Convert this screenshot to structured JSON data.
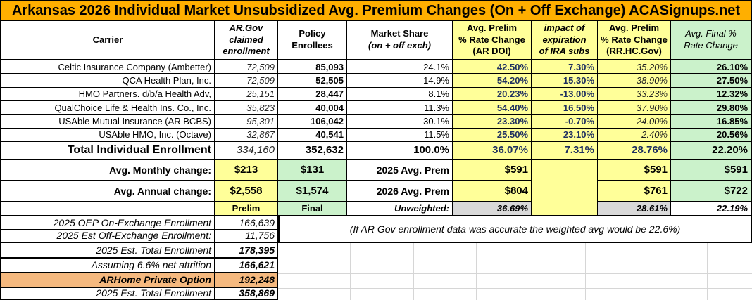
{
  "title": "Arkansas 2026 Individual Market Unsubsidized Avg. Premium Changes (On + Off Exchange) ACASignups.net",
  "columns": {
    "carrier": "Carrier",
    "ar_gov": "AR.Gov\nclaimed\nenrollment",
    "policy": "Policy\nEnrollees",
    "market_share_1": "Market Share",
    "market_share_2": "(on + off exch)",
    "prelim_doi": "Avg. Prelim\n% Rate Change\n(AR DOI)",
    "ira_impact": "impact of\nexpiration\nof IRA subs",
    "prelim_rr": "Avg. Prelim\n% Rate Change\n(RR.HC.Gov)",
    "final": "Avg. Final %\nRate Change"
  },
  "carriers": [
    {
      "name": "Celtic Insurance Company (Ambetter)",
      "claimed": "72,509",
      "enrollees": "85,093",
      "share": "24.1%",
      "prelim_doi": "42.50%",
      "ira_impact": "7.30%",
      "prelim_rr": "35.20%",
      "final": "26.10%"
    },
    {
      "name": "QCA Health Plan, Inc.",
      "claimed": "72,509",
      "enrollees": "52,505",
      "share": "14.9%",
      "prelim_doi": "54.20%",
      "ira_impact": "15.30%",
      "prelim_rr": "38.90%",
      "final": "27.50%"
    },
    {
      "name": "HMO Partners. d/b/a Health Adv,",
      "claimed": "25,151",
      "enrollees": "28,447",
      "share": "8.1%",
      "prelim_doi": "20.23%",
      "ira_impact": "-13.00%",
      "prelim_rr": "33.23%",
      "final": "12.32%"
    },
    {
      "name": "QualChoice Life & Health Ins. Co., Inc.",
      "claimed": "35,823",
      "enrollees": "40,004",
      "share": "11.3%",
      "prelim_doi": "54.40%",
      "ira_impact": "16.50%",
      "prelim_rr": "37.90%",
      "final": "29.80%"
    },
    {
      "name": "USAble Mutual Insurance (AR BCBS)",
      "claimed": "95,301",
      "enrollees": "106,042",
      "share": "30.1%",
      "prelim_doi": "23.30%",
      "ira_impact": "-0.70%",
      "prelim_rr": "24.00%",
      "final": "16.85%"
    },
    {
      "name": "USAble HMO, Inc. (Octave)",
      "claimed": "32,867",
      "enrollees": "40,541",
      "share": "11.5%",
      "prelim_doi": "25.50%",
      "ira_impact": "23.10%",
      "prelim_rr": "2.40%",
      "final": "20.56%"
    }
  ],
  "total": {
    "label": "Total Individual Enrollment",
    "claimed": "334,160",
    "enrollees": "352,632",
    "share": "100.0%",
    "prelim_doi": "36.07%",
    "ira_impact": "7.31%",
    "prelim_rr": "28.76%",
    "final": "22.20%"
  },
  "monthly": {
    "label": "Avg. Monthly change:",
    "prelim": "$213",
    "final": "$131",
    "prem_label": "2025 Avg. Prem",
    "doi": "$591",
    "rr": "$591",
    "final_col": "$591"
  },
  "annual": {
    "label": "Avg. Annual change:",
    "prelim": "$2,558",
    "final": "$1,574",
    "prem_label": "2026 Avg. Prem",
    "doi": "$804",
    "rr": "$761",
    "final_col": "$722"
  },
  "footer_labels": {
    "prelim": "Prelim",
    "final": "Final",
    "unweighted": "Unweighted:",
    "doi": "36.69%",
    "rr": "28.61%",
    "final_col": "22.19%"
  },
  "bottom_left": [
    {
      "label": "2025 OEP On-Exchange Enrollment",
      "value": "166,639"
    },
    {
      "label": "2025 Est Off-Exchange Enrollment:",
      "value": "11,756"
    },
    {
      "label": "2025 Est. Total Enrollment",
      "value": "178,395"
    },
    {
      "label": "Assuming 6.6% net attrition",
      "value": "166,621"
    },
    {
      "label": "ARHome Private Option",
      "value": "192,248"
    },
    {
      "label": "2025 Est. Total Enrollment",
      "value": "358,869"
    }
  ],
  "note": "(If AR Gov enrollment data was accurate the weighted avg would be 22.6%)",
  "colors": {
    "title_bg": "#FFAF00",
    "yellow_cell": "#FFFF99",
    "green_cell": "#CBF2CB",
    "gray_cell": "#D9D9D9",
    "orange_row": "#F5B97F",
    "navy_text": "#1F3060"
  }
}
